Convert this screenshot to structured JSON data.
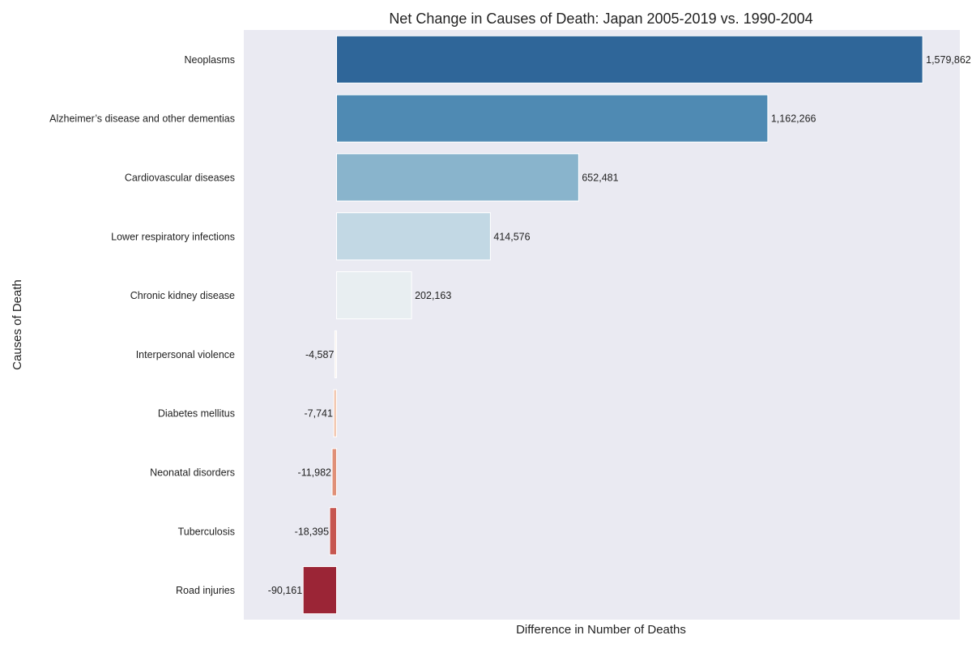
{
  "chart_data": {
    "type": "bar",
    "orientation": "horizontal",
    "title": "Net Change in Causes of Death: Japan 2005-2019 vs. 1990-2004",
    "xlabel": "Difference in Number of Deaths",
    "ylabel": "Causes of Death",
    "xlim": [
      -250000,
      1680000
    ],
    "grid": false,
    "legend": "none",
    "categories": [
      "Neoplasms",
      "Alzheimer’s disease and other dementias",
      "Cardiovascular diseases",
      "Lower respiratory infections",
      "Chronic kidney disease",
      "Interpersonal violence",
      "Diabetes mellitus",
      "Neonatal disorders",
      "Tuberculosis",
      "Road injuries"
    ],
    "values": [
      1579862,
      1162266,
      652481,
      414576,
      202163,
      -4587,
      -7741,
      -11982,
      -18395,
      -90161
    ],
    "value_labels": [
      "1,579,862",
      "1,162,266",
      "652,481",
      "414,576",
      "202,163",
      "-4,587",
      "-7,741",
      "-11,982",
      "-18,395",
      "-90,161"
    ],
    "colors": [
      "#2f6699",
      "#4f8ab3",
      "#89b4cc",
      "#c2d8e4",
      "#e8eef1",
      "#fbf3ef",
      "#f3c9b2",
      "#e09078",
      "#c65650",
      "#9b2536"
    ],
    "plot_background": "#eaeaf2"
  }
}
